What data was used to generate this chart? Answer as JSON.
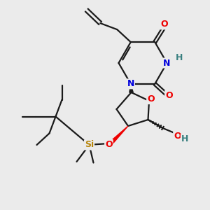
{
  "bg_color": "#ebebeb",
  "bond_color": "#1a1a1a",
  "N_color": "#0000dd",
  "O_color": "#ee0000",
  "Si_color": "#b8860b",
  "H_color": "#3a8080",
  "figsize": [
    3.0,
    3.0
  ],
  "dpi": 100,
  "xlim": [
    0,
    10
  ],
  "ylim": [
    0,
    10
  ]
}
